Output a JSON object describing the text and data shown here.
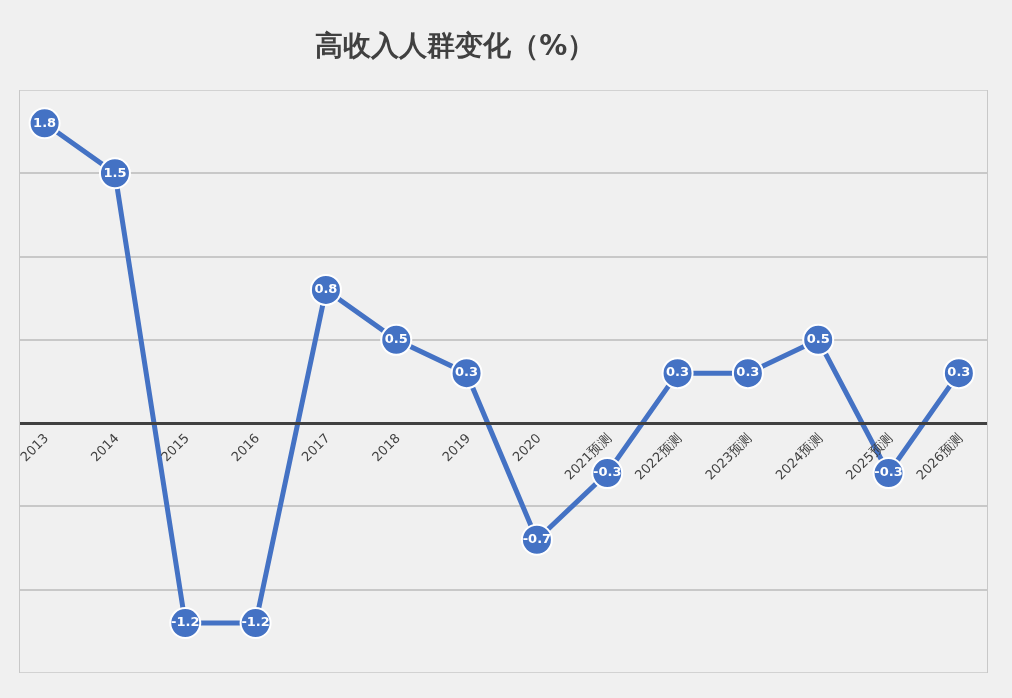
{
  "chart_data": {
    "type": "line",
    "title": "高收入人群变化（%）",
    "categories": [
      "2013",
      "2014",
      "2015",
      "2016",
      "2017",
      "2018",
      "2019",
      "2020",
      "2021预测",
      "2022预测",
      "2023预测",
      "2024预测",
      "2025预测",
      "2026预测"
    ],
    "series": [
      {
        "color": "#4472c4",
        "values": [
          1.8,
          1.5,
          -1.2,
          -1.2,
          0.8,
          0.5,
          0.3,
          -0.7,
          -0.3,
          0.3,
          0.3,
          0.5,
          -0.3,
          0.3
        ]
      }
    ],
    "data_labels": true,
    "marker": "circle",
    "line_style": "solid",
    "grid": "y",
    "legend": false,
    "tick_labels": "x",
    "ylim": [
      -1.5,
      2
    ],
    "yticks": [
      {
        "value": -1.5,
        "label": null
      },
      {
        "value": -1,
        "label": null
      },
      {
        "value": -0.5,
        "label": null
      },
      {
        "value": 0,
        "label": null
      },
      {
        "value": 0.5,
        "label": null
      },
      {
        "value": 1,
        "label": null
      },
      {
        "value": 1.5,
        "label": null
      },
      {
        "value": 2,
        "label": null
      }
    ]
  }
}
